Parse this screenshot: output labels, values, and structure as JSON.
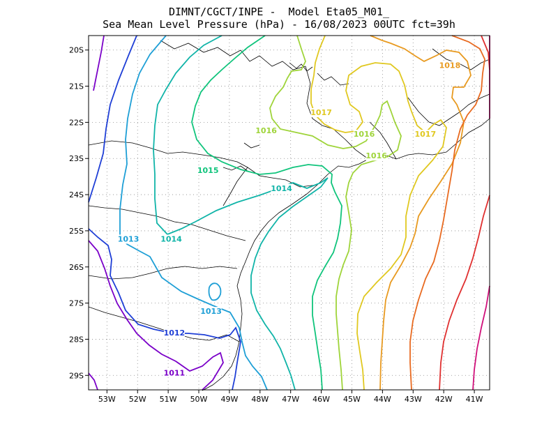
{
  "chart_data": {
    "type": "contour-map",
    "title": "DIMNT/CGCT/INPE -  Model Eta05_M01_",
    "subtitle": "Sea Mean Level Pressure (hPa) - 16/08/2023 00UTC fct=39h",
    "x_ticks": [
      "53W",
      "52W",
      "51W",
      "50W",
      "49W",
      "48W",
      "47W",
      "46W",
      "45W",
      "44W",
      "43W",
      "42W",
      "41W"
    ],
    "y_ticks": [
      "20S",
      "21S",
      "22S",
      "23S",
      "24S",
      "25S",
      "26S",
      "27S",
      "28S",
      "29S"
    ],
    "lon_range": [
      -53.6,
      -40.5
    ],
    "lat_range": [
      -29.4,
      -19.6
    ],
    "grid": "dotted",
    "contours": [
      {
        "value": 1011,
        "color": "#7a00c8",
        "label": "1011"
      },
      {
        "value": 1012,
        "color": "#1f3fd6",
        "label": "1012"
      },
      {
        "value": 1013,
        "color": "#1e9fd6",
        "label": "1013"
      },
      {
        "value": 1014,
        "color": "#10b4a8",
        "label": "1014"
      },
      {
        "value": 1015,
        "color": "#10c47c",
        "label": "1015"
      },
      {
        "value": 1016,
        "color": "#9fd43a",
        "label": "1016"
      },
      {
        "value": 1017,
        "color": "#e0c820",
        "label": "1017"
      },
      {
        "value": 1018,
        "color": "#e89a20",
        "label": "1018"
      },
      {
        "value": 1019,
        "color": "#e86a20",
        "label": ""
      },
      {
        "value": 1020,
        "color": "#e03030",
        "label": ""
      },
      {
        "value": 1021,
        "color": "#d0107a",
        "label": ""
      }
    ],
    "contour_labels": [
      {
        "text": "1015",
        "lon": -49.7,
        "lat": -23.4,
        "value": 1015
      },
      {
        "text": "1014",
        "lon": -47.3,
        "lat": -23.9,
        "value": 1014
      },
      {
        "text": "1014",
        "lon": -50.9,
        "lat": -25.3,
        "value": 1014
      },
      {
        "text": "1013",
        "lon": -52.3,
        "lat": -25.3,
        "value": 1013
      },
      {
        "text": "1013",
        "lon": -49.6,
        "lat": -27.3,
        "value": 1013
      },
      {
        "text": "1012",
        "lon": -50.8,
        "lat": -27.9,
        "value": 1012
      },
      {
        "text": "1011",
        "lon": -50.8,
        "lat": -29.0,
        "value": 1011
      },
      {
        "text": "1016",
        "lon": -47.8,
        "lat": -22.3,
        "value": 1016
      },
      {
        "text": "1016",
        "lon": -44.6,
        "lat": -22.4,
        "value": 1016
      },
      {
        "text": "1016",
        "lon": -44.2,
        "lat": -23.0,
        "value": 1016
      },
      {
        "text": "1017",
        "lon": -46.0,
        "lat": -21.8,
        "value": 1017
      },
      {
        "text": "1017",
        "lon": -42.6,
        "lat": -22.4,
        "value": 1017
      },
      {
        "text": "1018",
        "lon": -41.8,
        "lat": -20.5,
        "value": 1018
      }
    ]
  }
}
